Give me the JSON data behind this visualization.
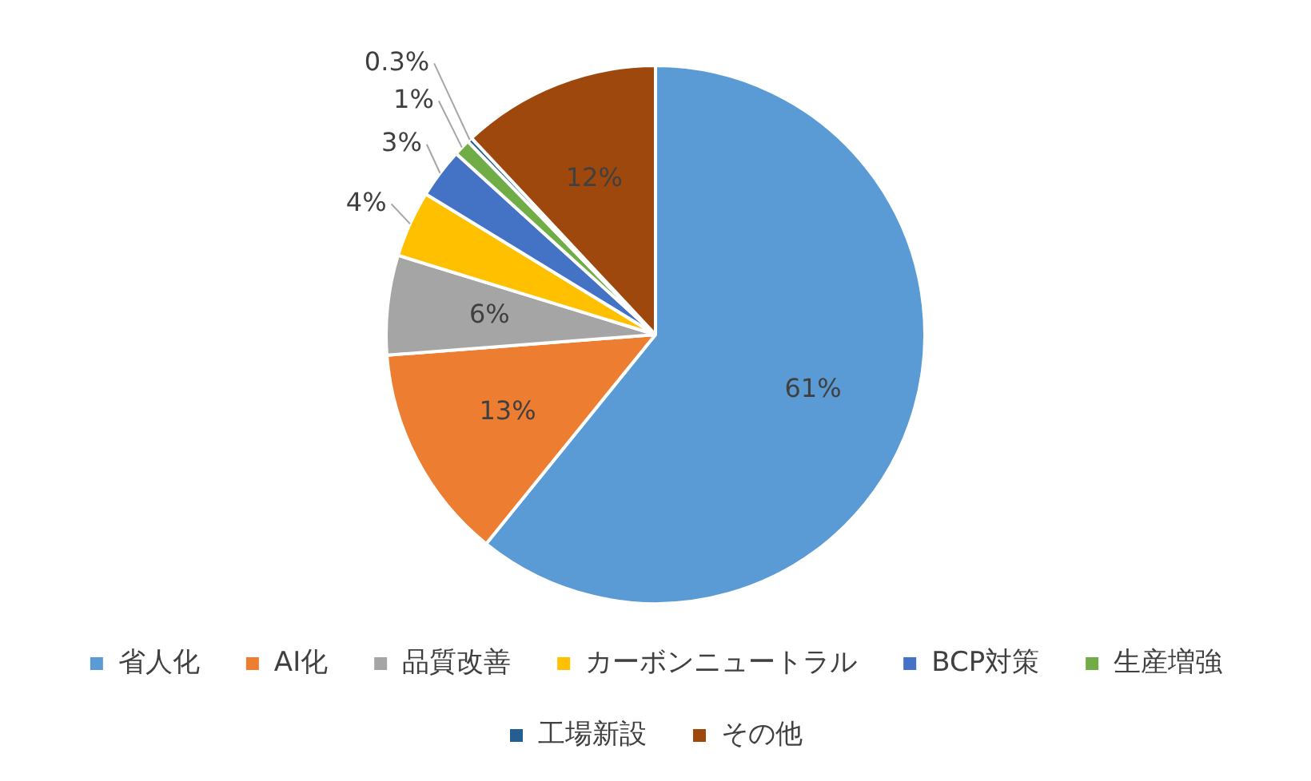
{
  "chart_data": {
    "type": "pie",
    "categories": [
      "省人化",
      "AI化",
      "品質改善",
      "カーボンニュートラル",
      "BCP対策",
      "生産増強",
      "工場新設",
      "その他"
    ],
    "values": [
      61,
      13,
      6,
      4,
      3,
      1,
      0.3,
      12
    ],
    "colors": [
      "#5b9bd5",
      "#ed7d31",
      "#a5a5a5",
      "#ffc000",
      "#4472c4",
      "#70ad47",
      "#255e91",
      "#9e480e"
    ],
    "value_labels": [
      "61%",
      "13%",
      "6%",
      "4%",
      "3%",
      "1%",
      "0.3%",
      "12%"
    ],
    "legend": "bottom"
  }
}
